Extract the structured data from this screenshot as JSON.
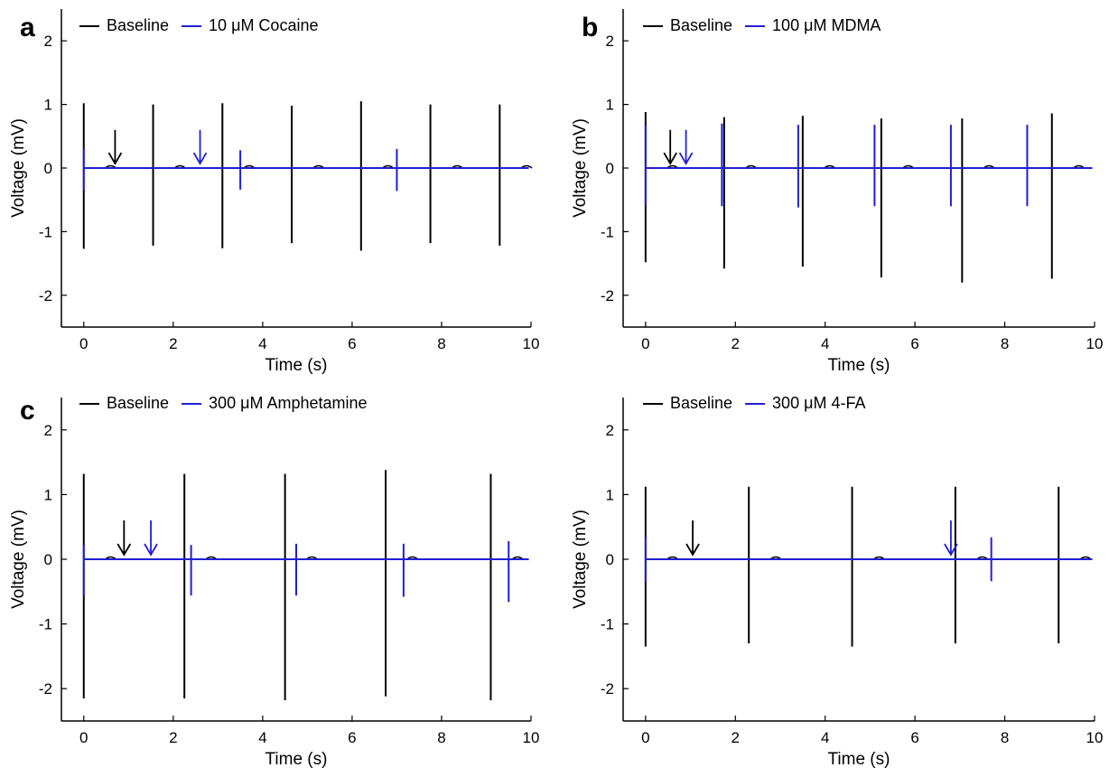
{
  "colors": {
    "baseline": "#000000",
    "drug": "#1f1fd6"
  },
  "chart_data": [
    {
      "type": "line",
      "panel_label": "a",
      "xlabel": "Time (s)",
      "ylabel": "Voltage (mV)",
      "xlim": [
        -0.5,
        10
      ],
      "ylim": [
        -2.5,
        2.5
      ],
      "xticks": [
        0,
        2,
        4,
        6,
        8,
        10
      ],
      "yticks": [
        -2,
        -1,
        0,
        1,
        2
      ],
      "grid": false,
      "legend_position": "top",
      "series": [
        {
          "name": "Baseline",
          "color": "#000000",
          "spikes": [
            [
              0.0,
              1.02,
              -1.27
            ],
            [
              1.55,
              1.0,
              -1.22
            ],
            [
              3.1,
              1.02,
              -1.26
            ],
            [
              4.65,
              0.98,
              -1.18
            ],
            [
              6.2,
              1.05,
              -1.3
            ],
            [
              7.75,
              1.0,
              -1.18
            ],
            [
              9.3,
              1.0,
              -1.22
            ]
          ]
        },
        {
          "name": "10 μM Cocaine",
          "color": "#1f1fd6",
          "spikes": [
            [
              0.0,
              0.3,
              -0.35
            ],
            [
              3.5,
              0.28,
              -0.34
            ],
            [
              7.0,
              0.3,
              -0.36
            ]
          ]
        }
      ],
      "annotations": [
        {
          "type": "arrow",
          "color": "#000000",
          "x": 0.7,
          "y": 0.6
        },
        {
          "type": "arrow",
          "color": "#1f1fd6",
          "x": 2.6,
          "y": 0.6
        }
      ]
    },
    {
      "type": "line",
      "panel_label": "b",
      "xlabel": "Time (s)",
      "ylabel": "Voltage (mV)",
      "xlim": [
        -0.5,
        10
      ],
      "ylim": [
        -2.5,
        2.5
      ],
      "xticks": [
        0,
        2,
        4,
        6,
        8,
        10
      ],
      "yticks": [
        -2,
        -1,
        0,
        1,
        2
      ],
      "grid": false,
      "legend_position": "top",
      "series": [
        {
          "name": "Baseline",
          "color": "#000000",
          "spikes": [
            [
              0.0,
              0.88,
              -1.48
            ],
            [
              1.75,
              0.8,
              -1.58
            ],
            [
              3.5,
              0.82,
              -1.55
            ],
            [
              5.25,
              0.78,
              -1.72
            ],
            [
              7.05,
              0.78,
              -1.8
            ],
            [
              9.05,
              0.86,
              -1.74
            ]
          ]
        },
        {
          "name": "100 μM MDMA",
          "color": "#1f1fd6",
          "spikes": [
            [
              0.0,
              0.68,
              -0.58
            ],
            [
              1.7,
              0.7,
              -0.6
            ],
            [
              3.4,
              0.68,
              -0.62
            ],
            [
              5.1,
              0.68,
              -0.6
            ],
            [
              6.8,
              0.68,
              -0.6
            ],
            [
              8.5,
              0.68,
              -0.6
            ]
          ]
        }
      ],
      "annotations": [
        {
          "type": "arrow",
          "color": "#000000",
          "x": 0.55,
          "y": 0.6
        },
        {
          "type": "arrow",
          "color": "#1f1fd6",
          "x": 0.9,
          "y": 0.6
        }
      ]
    },
    {
      "type": "line",
      "panel_label": "c",
      "xlabel": "Time (s)",
      "ylabel": "Voltage (mV)",
      "xlim": [
        -0.5,
        10
      ],
      "ylim": [
        -2.5,
        2.5
      ],
      "xticks": [
        0,
        2,
        4,
        6,
        8,
        10
      ],
      "yticks": [
        -2,
        -1,
        0,
        1,
        2
      ],
      "grid": false,
      "legend_position": "top",
      "series": [
        {
          "name": "Baseline",
          "color": "#000000",
          "spikes": [
            [
              0.0,
              1.32,
              -2.15
            ],
            [
              2.25,
              1.32,
              -2.15
            ],
            [
              4.5,
              1.32,
              -2.18
            ],
            [
              6.75,
              1.38,
              -2.12
            ],
            [
              9.1,
              1.32,
              -2.18
            ]
          ]
        },
        {
          "name": "300 μM Amphetamine",
          "color": "#1f1fd6",
          "spikes": [
            [
              0.0,
              0.22,
              -0.56
            ],
            [
              2.4,
              0.22,
              -0.56
            ],
            [
              4.75,
              0.24,
              -0.56
            ],
            [
              7.15,
              0.24,
              -0.58
            ],
            [
              9.5,
              0.28,
              -0.66
            ]
          ]
        }
      ],
      "annotations": [
        {
          "type": "arrow",
          "color": "#000000",
          "x": 0.9,
          "y": 0.6
        },
        {
          "type": "arrow",
          "color": "#1f1fd6",
          "x": 1.5,
          "y": 0.6
        }
      ]
    },
    {
      "type": "line",
      "panel_label": "",
      "xlabel": "Time (s)",
      "ylabel": "Voltage (mV)",
      "xlim": [
        -0.5,
        10
      ],
      "ylim": [
        -2.5,
        2.5
      ],
      "xticks": [
        0,
        2,
        4,
        6,
        8,
        10
      ],
      "yticks": [
        -2,
        -1,
        0,
        1,
        2
      ],
      "grid": false,
      "legend_position": "top",
      "series": [
        {
          "name": "Baseline",
          "color": "#000000",
          "spikes": [
            [
              0.0,
              1.12,
              -1.35
            ],
            [
              2.3,
              1.12,
              -1.3
            ],
            [
              4.6,
              1.12,
              -1.35
            ],
            [
              6.9,
              1.12,
              -1.3
            ],
            [
              9.2,
              1.12,
              -1.3
            ]
          ]
        },
        {
          "name": "300 μM 4-FA",
          "color": "#1f1fd6",
          "spikes": [
            [
              0.0,
              0.35,
              -0.35
            ],
            [
              7.7,
              0.34,
              -0.34
            ]
          ]
        }
      ],
      "annotations": [
        {
          "type": "arrow",
          "color": "#000000",
          "x": 1.05,
          "y": 0.6
        },
        {
          "type": "arrow",
          "color": "#1f1fd6",
          "x": 6.8,
          "y": 0.6
        }
      ]
    }
  ]
}
